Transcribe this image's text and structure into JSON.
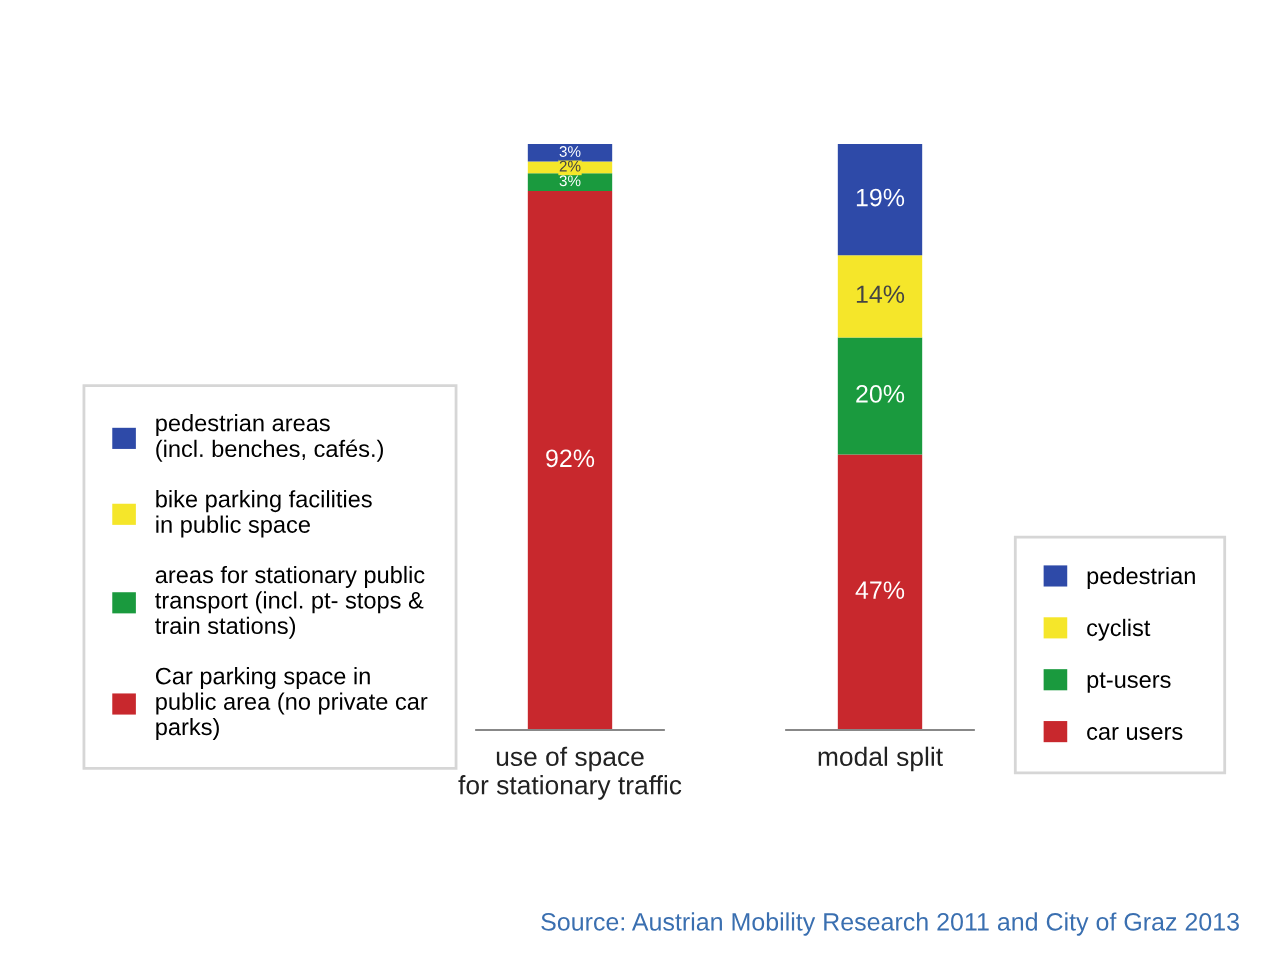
{
  "chart_data": [
    {
      "type": "bar",
      "stacked": true,
      "categories": [
        "use of space\nfor stationary traffic"
      ],
      "tick_labels": "x",
      "legend": "left",
      "series": [
        {
          "name": "Car parking space in\npublic area (no private car\nparks)",
          "color": "#c8282d",
          "values": [
            92
          ],
          "value_labels": [
            "92%"
          ]
        },
        {
          "name": "areas for stationary public\ntransport (incl. pt- stops &\ntrain stations)",
          "color": "#1a9a3e",
          "values": [
            3
          ],
          "value_labels": [
            "3%"
          ]
        },
        {
          "name": "bike parking facilities\nin public space",
          "color": "#f5e62a",
          "values": [
            2
          ],
          "value_labels": [
            "2%"
          ]
        },
        {
          "name": "pedestrian areas\n(incl. benches, cafés.)",
          "color": "#2e4aa8",
          "values": [
            3
          ],
          "value_labels": [
            "3%"
          ]
        }
      ]
    },
    {
      "type": "bar",
      "stacked": true,
      "categories": [
        "modal split"
      ],
      "tick_labels": "x",
      "legend": "right",
      "annotations": [
        "Source: Austrian Mobility Research 2011 and City of Graz 2013"
      ],
      "series": [
        {
          "name": "car users",
          "color": "#c8282d",
          "values": [
            47
          ],
          "value_labels": [
            "47%"
          ]
        },
        {
          "name": "pt-users",
          "color": "#1a9a3e",
          "values": [
            20
          ],
          "value_labels": [
            "20%"
          ]
        },
        {
          "name": "cyclist",
          "color": "#f5e62a",
          "values": [
            14
          ],
          "value_labels": [
            "14%"
          ]
        },
        {
          "name": "pedestrian",
          "color": "#2e4aa8",
          "values": [
            19
          ],
          "value_labels": [
            "19%"
          ]
        }
      ]
    }
  ]
}
